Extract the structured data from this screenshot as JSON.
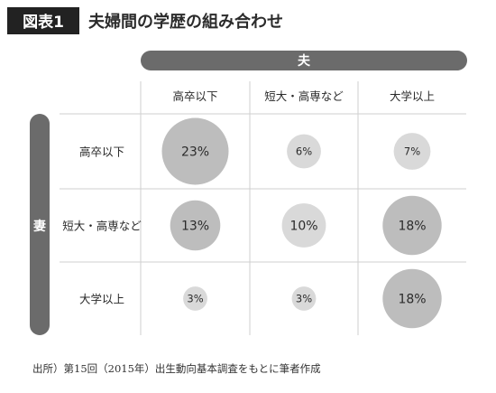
{
  "figure_label": "図表1",
  "title": "夫婦間の学歴の組み合わせ",
  "source_note": "出所）第15回（2015年）出生動向基本調査をもとに筆者作成",
  "colors": {
    "header_band": "#6b6b6b",
    "large_bubble": "#bdbdbd",
    "small_bubble": "#d9d9d9",
    "grid": "#cfcfcf",
    "text": "#2b2b2b"
  },
  "chart_data": {
    "type": "table",
    "column_group_label": "夫",
    "row_group_label": "妻",
    "columns": [
      "高卒以下",
      "短大・高専など",
      "大学以上"
    ],
    "rows": [
      "高卒以下",
      "短大・高専など",
      "大学以上"
    ],
    "unit": "%",
    "values": [
      [
        23,
        6,
        7
      ],
      [
        13,
        10,
        18
      ],
      [
        3,
        3,
        18
      ]
    ]
  }
}
